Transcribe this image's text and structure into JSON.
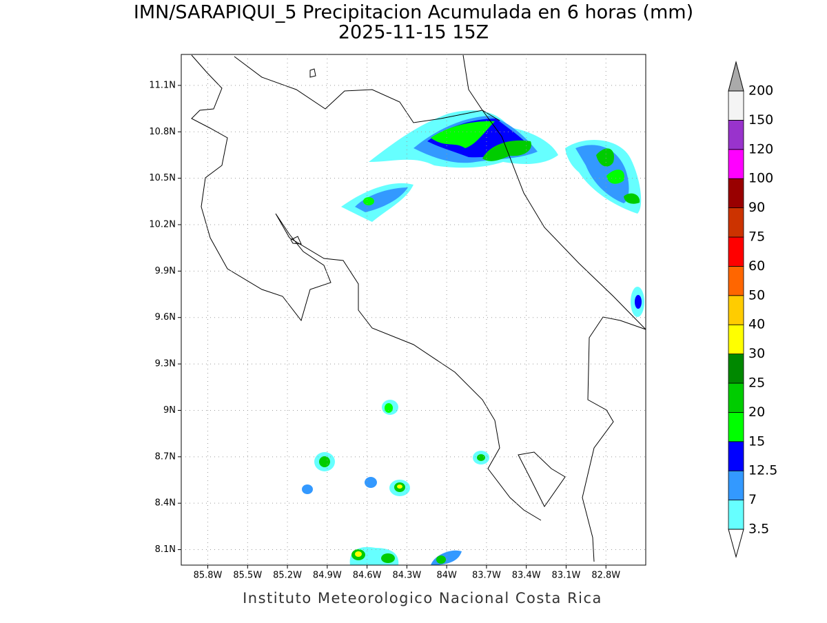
{
  "title": "IMN/SARAPIQUI_5 Precipitacion Acumulada en 6 horas (mm)",
  "subtitle": "2025-11-15 15Z",
  "footer": "Instituto Meteorologico Nacional Costa Rica",
  "map": {
    "xlim": [
      -86.0,
      -82.5
    ],
    "ylim": [
      8.0,
      11.3
    ],
    "grid": true,
    "xticks": [
      {
        "value": -85.8,
        "label": "85.8W"
      },
      {
        "value": -85.5,
        "label": "85.5W"
      },
      {
        "value": -85.2,
        "label": "85.2W"
      },
      {
        "value": -84.9,
        "label": "84.9W"
      },
      {
        "value": -84.6,
        "label": "84.6W"
      },
      {
        "value": -84.3,
        "label": "84.3W"
      },
      {
        "value": -84.0,
        "label": "84W"
      },
      {
        "value": -83.7,
        "label": "83.7W"
      },
      {
        "value": -83.4,
        "label": "83.4W"
      },
      {
        "value": -83.1,
        "label": "83.1W"
      },
      {
        "value": -82.8,
        "label": "82.8W"
      }
    ],
    "yticks": [
      {
        "value": 8.1,
        "label": "8.1N"
      },
      {
        "value": 8.4,
        "label": "8.4N"
      },
      {
        "value": 8.7,
        "label": "8.7N"
      },
      {
        "value": 9.0,
        "label": "9N"
      },
      {
        "value": 9.3,
        "label": "9.3N"
      },
      {
        "value": 9.6,
        "label": "9.6N"
      },
      {
        "value": 9.9,
        "label": "9.9N"
      },
      {
        "value": 10.2,
        "label": "10.2N"
      },
      {
        "value": 10.5,
        "label": "10.5N"
      },
      {
        "value": 10.8,
        "label": "10.8N"
      },
      {
        "value": 11.1,
        "label": "11.1N"
      }
    ]
  },
  "colorbar": {
    "levels": [
      3.5,
      7,
      12.5,
      15,
      20,
      25,
      30,
      40,
      50,
      60,
      75,
      90,
      100,
      120,
      150,
      200
    ],
    "colors": [
      "#66ffff",
      "#3399ff",
      "#0000ff",
      "#00ff00",
      "#00cc00",
      "#008800",
      "#ffff00",
      "#ffcc00",
      "#ff6600",
      "#ff0000",
      "#cc3300",
      "#990000",
      "#ff00ff",
      "#9933cc",
      "#f4f4f4"
    ],
    "under_color": "#ffffff",
    "over_color": "#aaaaaa"
  }
}
